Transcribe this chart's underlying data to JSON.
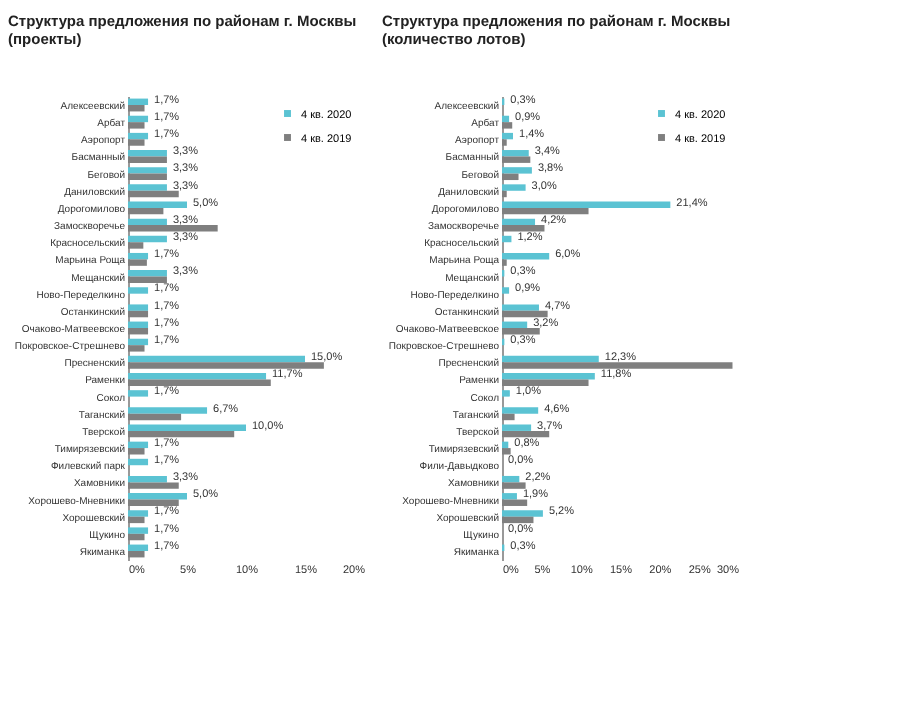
{
  "chart_data": [
    {
      "type": "bar",
      "orientation": "horizontal",
      "title": "Структура предложения по районам г. Москвы (проекты)",
      "legend": "top right",
      "categories": [
        "Алексеевский",
        "Арбат",
        "Аэропорт",
        "Басманный",
        "Беговой",
        "Даниловский",
        "Дорогомилово",
        "Замоскворечье",
        "Красносельский",
        "Марьина Роща",
        "Мещанский",
        "Ново-Переделкино",
        "Останкинский",
        "Очаково-Матвеевское",
        "Покровское-Стрешнево",
        "Пресненский",
        "Раменки",
        "Сокол",
        "Таганский",
        "Тверской",
        "Тимирязевский",
        "Филевский парк",
        "Хамовники",
        "Хорошево-Мневники",
        "Хорошевский",
        "Щукино",
        "Якиманка"
      ],
      "xlim": [
        0,
        20
      ],
      "xticks": [
        {
          "value": 0,
          "label": "0%"
        },
        {
          "value": 5,
          "label": "5%"
        },
        {
          "value": 10,
          "label": "10%"
        },
        {
          "value": 15,
          "label": "15%"
        },
        {
          "value": 20,
          "label": "20%"
        }
      ],
      "series": [
        {
          "name": "4 кв. 2020",
          "color": "#5bc3d3",
          "values": [
            1.7,
            1.7,
            1.7,
            3.3,
            3.3,
            3.3,
            5.0,
            3.3,
            3.3,
            1.7,
            3.3,
            1.7,
            1.7,
            1.7,
            1.7,
            15.0,
            11.7,
            1.7,
            6.7,
            10.0,
            1.7,
            1.7,
            3.3,
            5.0,
            1.7,
            1.7,
            1.7
          ],
          "value_labels": [
            "1,7%",
            "1,7%",
            "1,7%",
            "3,3%",
            "3,3%",
            "3,3%",
            "5,0%",
            "3,3%",
            "3,3%",
            "1,7%",
            "3,3%",
            "1,7%",
            "1,7%",
            "1,7%",
            "1,7%",
            "15,0%",
            "11,7%",
            "1,7%",
            "6,7%",
            "10,0%",
            "1,7%",
            "1,7%",
            "3,3%",
            "5,0%",
            "1,7%",
            "1,7%",
            "1,7%"
          ]
        },
        {
          "name": "4 кв. 2019",
          "color": "#7f7f7f",
          "values": [
            1.4,
            1.4,
            1.4,
            3.3,
            3.3,
            4.3,
            3.0,
            7.6,
            1.3,
            1.6,
            3.3,
            null,
            1.7,
            1.7,
            1.4,
            16.6,
            12.1,
            null,
            4.5,
            9.0,
            1.4,
            null,
            4.3,
            4.3,
            1.4,
            1.4,
            1.4
          ]
        }
      ]
    },
    {
      "type": "bar",
      "orientation": "horizontal",
      "title": "Структура предложения по районам г. Москвы (количество лотов)",
      "legend": "top right",
      "categories": [
        "Алексеевский",
        "Арбат",
        "Аэропорт",
        "Басманный",
        "Беговой",
        "Даниловский",
        "Дорогомилово",
        "Замоскворечье",
        "Красносельский",
        "Марьина Роща",
        "Мещанский",
        "Ново-Переделкино",
        "Останкинский",
        "Очаково-Матвеевское",
        "Покровское-Стрешнево",
        "Пресненский",
        "Раменки",
        "Сокол",
        "Таганский",
        "Тверской",
        "Тимирязевский",
        "Фили-Давыдково",
        "Хамовники",
        "Хорошево-Мневники",
        "Хорошевский",
        "Щукино",
        "Якиманка"
      ],
      "xlim": [
        0,
        30
      ],
      "xticks": [
        {
          "value": 0,
          "label": "0%"
        },
        {
          "value": 5,
          "label": "5%"
        },
        {
          "value": 10,
          "label": "10%"
        },
        {
          "value": 15,
          "label": "15%"
        },
        {
          "value": 20,
          "label": "20%"
        },
        {
          "value": 25,
          "label": "25%"
        },
        {
          "value": 30,
          "label": "30%"
        }
      ],
      "series": [
        {
          "name": "4 кв. 2020",
          "color": "#5bc3d3",
          "values": [
            0.3,
            0.9,
            1.4,
            3.4,
            3.8,
            3.0,
            21.4,
            4.2,
            1.2,
            6.0,
            0.3,
            0.9,
            4.7,
            3.2,
            0.3,
            12.3,
            11.8,
            1.0,
            4.6,
            3.7,
            0.8,
            0.0,
            2.2,
            1.9,
            5.2,
            0.0,
            0.3
          ],
          "value_labels": [
            "0,3%",
            "0,9%",
            "1,4%",
            "3,4%",
            "3,8%",
            "3,0%",
            "21,4%",
            "4,2%",
            "1,2%",
            "6,0%",
            "0,3%",
            "0,9%",
            "4,7%",
            "3,2%",
            "0,3%",
            "12,3%",
            "11,8%",
            "1,0%",
            "4,6%",
            "3,7%",
            "0,8%",
            "0,0%",
            "2,2%",
            "1,9%",
            "5,2%",
            "0,0%",
            "0,3%"
          ]
        },
        {
          "name": "4 кв. 2019",
          "color": "#7f7f7f",
          "values": [
            null,
            1.3,
            0.6,
            3.6,
            2.1,
            0.6,
            11.0,
            5.4,
            null,
            0.6,
            null,
            null,
            5.8,
            4.8,
            null,
            29.3,
            11.0,
            null,
            1.6,
            6.0,
            1.1,
            null,
            3.0,
            3.2,
            4.0,
            null,
            null
          ]
        }
      ]
    }
  ]
}
